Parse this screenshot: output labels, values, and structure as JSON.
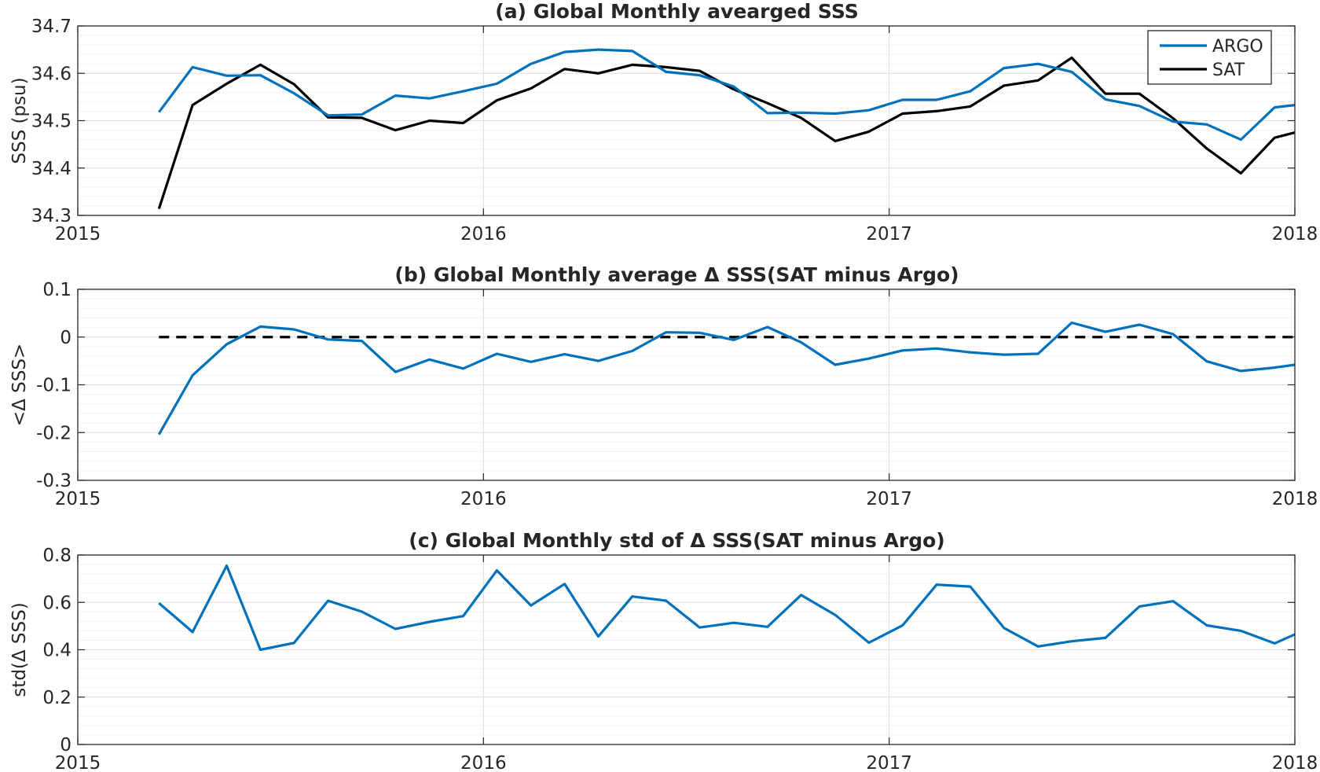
{
  "chart_data": [
    {
      "type": "line",
      "title": "(a) Global Monthly avearged SSS",
      "ylabel": "SSS (psu)",
      "xlabel": "",
      "xlim": [
        2015,
        2018
      ],
      "ylim": [
        34.3,
        34.7
      ],
      "xticks": [
        2015,
        2016,
        2017,
        2018
      ],
      "xtick_labels": [
        "2015",
        "2016",
        "2017",
        "2018"
      ],
      "yticks": [
        34.3,
        34.4,
        34.5,
        34.6,
        34.7
      ],
      "ytick_labels": [
        "34.3",
        "34.4",
        "34.5",
        "34.6",
        "34.7"
      ],
      "grid": true,
      "minor_grid": true,
      "legend_position": "top-right",
      "x": [
        2015.2,
        2015.283,
        2015.367,
        2015.45,
        2015.533,
        2015.617,
        2015.7,
        2015.783,
        2015.867,
        2015.95,
        2016.033,
        2016.117,
        2016.2,
        2016.283,
        2016.367,
        2016.45,
        2016.533,
        2016.617,
        2016.7,
        2016.783,
        2016.867,
        2016.95,
        2017.033,
        2017.117,
        2017.2,
        2017.283,
        2017.367,
        2017.45,
        2017.533,
        2017.617,
        2017.7,
        2017.783,
        2017.867,
        2017.95,
        2018.0
      ],
      "series": [
        {
          "name": "ARGO",
          "color": "#0072BD",
          "values": [
            34.518,
            34.613,
            34.595,
            34.596,
            34.558,
            34.511,
            34.513,
            34.553,
            34.547,
            34.562,
            34.578,
            34.62,
            34.645,
            34.65,
            34.647,
            34.603,
            34.596,
            34.572,
            34.516,
            34.517,
            34.515,
            34.522,
            34.544,
            34.544,
            34.562,
            34.611,
            34.62,
            34.603,
            34.545,
            34.531,
            34.498,
            34.492,
            34.46,
            34.528,
            34.533
          ]
        },
        {
          "name": "SAT",
          "color": "#000000",
          "values": [
            34.314,
            34.533,
            34.578,
            34.618,
            34.577,
            34.507,
            34.506,
            34.48,
            34.5,
            34.495,
            34.543,
            34.568,
            34.609,
            34.6,
            34.618,
            34.613,
            34.605,
            34.566,
            34.537,
            34.506,
            34.457,
            34.477,
            34.515,
            34.52,
            34.53,
            34.574,
            34.585,
            34.633,
            34.557,
            34.557,
            34.505,
            34.441,
            34.389,
            34.464,
            34.475
          ]
        }
      ]
    },
    {
      "type": "line",
      "title": "(b) Global Monthly average Δ SSS(SAT minus Argo)",
      "ylabel": "<Δ SSS>",
      "xlabel": "",
      "xlim": [
        2015,
        2018
      ],
      "ylim": [
        -0.3,
        0.1
      ],
      "xticks": [
        2015,
        2016,
        2017,
        2018
      ],
      "xtick_labels": [
        "2015",
        "2016",
        "2017",
        "2018"
      ],
      "yticks": [
        -0.3,
        -0.2,
        -0.1,
        0,
        0.1
      ],
      "ytick_labels": [
        "-0.3",
        "-0.2",
        "-0.1",
        "0",
        "0.1"
      ],
      "grid": true,
      "minor_grid": true,
      "reference_line": {
        "y": 0,
        "x": [
          2015.2,
          2018.0
        ],
        "style": "dashed",
        "color": "#000000"
      },
      "x": [
        2015.2,
        2015.283,
        2015.367,
        2015.45,
        2015.533,
        2015.617,
        2015.7,
        2015.783,
        2015.867,
        2015.95,
        2016.033,
        2016.117,
        2016.2,
        2016.283,
        2016.367,
        2016.45,
        2016.533,
        2016.617,
        2016.7,
        2016.783,
        2016.867,
        2016.95,
        2017.033,
        2017.117,
        2017.2,
        2017.283,
        2017.367,
        2017.45,
        2017.533,
        2017.617,
        2017.7,
        2017.783,
        2017.867,
        2017.95,
        2018.0
      ],
      "series": [
        {
          "color": "#0072BD",
          "values": [
            -0.204,
            -0.08,
            -0.015,
            0.022,
            0.016,
            -0.005,
            -0.008,
            -0.073,
            -0.047,
            -0.066,
            -0.035,
            -0.052,
            -0.036,
            -0.05,
            -0.029,
            0.01,
            0.009,
            -0.006,
            0.021,
            -0.011,
            -0.058,
            -0.045,
            -0.028,
            -0.024,
            -0.032,
            -0.037,
            -0.035,
            0.03,
            0.011,
            0.026,
            0.006,
            -0.051,
            -0.071,
            -0.064,
            -0.058
          ]
        }
      ]
    },
    {
      "type": "line",
      "title": "(c) Global Monthly std of Δ SSS(SAT minus Argo)",
      "ylabel": "std(Δ SSS)",
      "xlabel": "",
      "xlim": [
        2015,
        2018
      ],
      "ylim": [
        0,
        0.8
      ],
      "xticks": [
        2015,
        2016,
        2017,
        2018
      ],
      "xtick_labels": [
        "2015",
        "2016",
        "2017",
        "2018"
      ],
      "yticks": [
        0,
        0.2,
        0.4,
        0.6,
        0.8
      ],
      "ytick_labels": [
        "0",
        "0.2",
        "0.4",
        "0.6",
        "0.8"
      ],
      "grid": true,
      "minor_grid": true,
      "x": [
        2015.2,
        2015.283,
        2015.367,
        2015.45,
        2015.533,
        2015.617,
        2015.7,
        2015.783,
        2015.867,
        2015.95,
        2016.033,
        2016.117,
        2016.2,
        2016.283,
        2016.367,
        2016.45,
        2016.533,
        2016.617,
        2016.7,
        2016.783,
        2016.867,
        2016.95,
        2017.033,
        2017.117,
        2017.2,
        2017.283,
        2017.367,
        2017.45,
        2017.533,
        2017.617,
        2017.7,
        2017.783,
        2017.867,
        2017.95,
        2018.0
      ],
      "series": [
        {
          "color": "#0072BD",
          "values": [
            0.597,
            0.475,
            0.755,
            0.4,
            0.429,
            0.607,
            0.561,
            0.488,
            0.518,
            0.542,
            0.735,
            0.587,
            0.678,
            0.456,
            0.625,
            0.607,
            0.494,
            0.514,
            0.497,
            0.631,
            0.547,
            0.43,
            0.503,
            0.675,
            0.667,
            0.492,
            0.414,
            0.436,
            0.45,
            0.583,
            0.605,
            0.503,
            0.48,
            0.427,
            0.465
          ]
        }
      ]
    }
  ]
}
